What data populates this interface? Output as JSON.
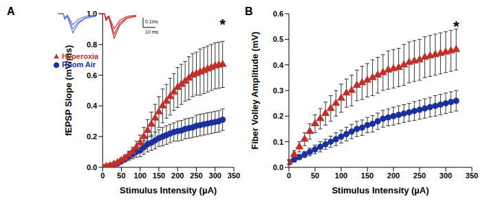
{
  "chart_data": [
    {
      "type": "scatter",
      "panel": "A",
      "xlabel": "Stimulus Intensity (µA)",
      "ylabel": "fEPSP Slope (mV/ms)",
      "x": [
        0,
        10,
        20,
        30,
        40,
        50,
        60,
        70,
        80,
        90,
        100,
        110,
        120,
        130,
        140,
        150,
        160,
        170,
        180,
        190,
        200,
        210,
        220,
        230,
        240,
        250,
        260,
        270,
        280,
        290,
        300,
        310,
        320
      ],
      "xlim": [
        0,
        350
      ],
      "xticks": [
        0,
        50,
        100,
        150,
        200,
        250,
        300,
        350
      ],
      "ylim": [
        0,
        1
      ],
      "yticks": [
        {
          "value": 0,
          "label": "0.0"
        },
        0.2,
        0.4,
        0.6,
        0.8,
        {
          "value": 1,
          "label": "1.0"
        }
      ],
      "grid": false,
      "legend": "upper left",
      "annotations": [
        {
          "text": "*",
          "x": 320,
          "y": 0.93
        }
      ],
      "scale_bar_labels": [
        "0.1mv",
        "10 ms"
      ],
      "series": [
        {
          "name": "Room Air",
          "color": "#1c2f9e",
          "marker": "circle",
          "values": [
            0,
            0.005,
            0.01,
            0.015,
            0.025,
            0.04,
            0.055,
            0.07,
            0.085,
            0.1,
            0.11,
            0.13,
            0.15,
            0.16,
            0.175,
            0.19,
            0.2,
            0.21,
            0.22,
            0.23,
            0.235,
            0.24,
            0.25,
            0.255,
            0.26,
            0.27,
            0.275,
            0.28,
            0.285,
            0.29,
            0.295,
            0.3,
            0.31
          ],
          "errors": [
            0,
            0.003,
            0.005,
            0.008,
            0.01,
            0.015,
            0.02,
            0.025,
            0.03,
            0.035,
            0.04,
            0.045,
            0.05,
            0.05,
            0.055,
            0.055,
            0.06,
            0.06,
            0.06,
            0.06,
            0.065,
            0.065,
            0.065,
            0.065,
            0.065,
            0.07,
            0.07,
            0.07,
            0.07,
            0.07,
            0.07,
            0.07,
            0.07
          ]
        },
        {
          "name": "Hyperoxia",
          "color": "#c0302a",
          "marker": "triangle",
          "values": [
            0,
            0.005,
            0.01,
            0.02,
            0.03,
            0.045,
            0.06,
            0.08,
            0.1,
            0.13,
            0.16,
            0.2,
            0.24,
            0.28,
            0.32,
            0.36,
            0.4,
            0.43,
            0.46,
            0.49,
            0.52,
            0.54,
            0.56,
            0.58,
            0.6,
            0.61,
            0.62,
            0.63,
            0.64,
            0.65,
            0.66,
            0.665,
            0.67
          ],
          "errors": [
            0,
            0.003,
            0.005,
            0.008,
            0.01,
            0.015,
            0.02,
            0.025,
            0.03,
            0.04,
            0.05,
            0.06,
            0.07,
            0.08,
            0.09,
            0.1,
            0.11,
            0.11,
            0.12,
            0.12,
            0.13,
            0.13,
            0.13,
            0.14,
            0.14,
            0.14,
            0.15,
            0.15,
            0.15,
            0.15,
            0.15,
            0.15,
            0.15
          ]
        }
      ]
    },
    {
      "type": "scatter",
      "panel": "B",
      "xlabel": "Stimulus Intensity (µA)",
      "ylabel": "Fiber Volley Amplitude (mV)",
      "x": [
        0,
        10,
        20,
        30,
        40,
        50,
        60,
        70,
        80,
        90,
        100,
        110,
        120,
        130,
        140,
        150,
        160,
        170,
        180,
        190,
        200,
        210,
        220,
        230,
        240,
        250,
        260,
        270,
        280,
        290,
        300,
        310,
        320
      ],
      "xlim": [
        0,
        350
      ],
      "xticks": [
        0,
        50,
        100,
        150,
        200,
        250,
        300,
        350
      ],
      "ylim": [
        0,
        0.6
      ],
      "yticks": [
        {
          "value": 0,
          "label": "0.0"
        },
        0.1,
        0.2,
        0.3,
        0.4,
        0.5,
        0.6
      ],
      "grid": false,
      "annotations": [
        {
          "text": "*",
          "x": 320,
          "y": 0.55
        }
      ],
      "series": [
        {
          "name": "Room Air",
          "color": "#1c2f9e",
          "marker": "circle",
          "values": [
            0.02,
            0.03,
            0.04,
            0.05,
            0.06,
            0.07,
            0.08,
            0.09,
            0.1,
            0.11,
            0.12,
            0.13,
            0.14,
            0.15,
            0.155,
            0.165,
            0.17,
            0.18,
            0.19,
            0.195,
            0.2,
            0.205,
            0.21,
            0.215,
            0.22,
            0.225,
            0.23,
            0.235,
            0.24,
            0.245,
            0.25,
            0.255,
            0.26
          ],
          "errors": [
            0.005,
            0.008,
            0.01,
            0.012,
            0.015,
            0.017,
            0.02,
            0.02,
            0.022,
            0.025,
            0.025,
            0.027,
            0.028,
            0.03,
            0.03,
            0.03,
            0.032,
            0.032,
            0.033,
            0.033,
            0.035,
            0.035,
            0.035,
            0.035,
            0.037,
            0.037,
            0.038,
            0.038,
            0.04,
            0.04,
            0.04,
            0.04,
            0.04
          ]
        },
        {
          "name": "Hyperoxia",
          "color": "#c0302a",
          "marker": "triangle",
          "values": [
            0.02,
            0.05,
            0.08,
            0.11,
            0.14,
            0.17,
            0.19,
            0.21,
            0.23,
            0.25,
            0.27,
            0.29,
            0.3,
            0.32,
            0.33,
            0.34,
            0.35,
            0.36,
            0.37,
            0.38,
            0.385,
            0.39,
            0.4,
            0.41,
            0.415,
            0.42,
            0.43,
            0.435,
            0.44,
            0.445,
            0.45,
            0.455,
            0.46
          ],
          "errors": [
            0.01,
            0.015,
            0.02,
            0.025,
            0.03,
            0.035,
            0.04,
            0.045,
            0.05,
            0.05,
            0.055,
            0.055,
            0.06,
            0.06,
            0.065,
            0.065,
            0.07,
            0.07,
            0.07,
            0.075,
            0.075,
            0.075,
            0.08,
            0.08,
            0.08,
            0.08,
            0.08,
            0.08,
            0.08,
            0.08,
            0.08,
            0.08,
            0.08
          ]
        }
      ]
    }
  ]
}
